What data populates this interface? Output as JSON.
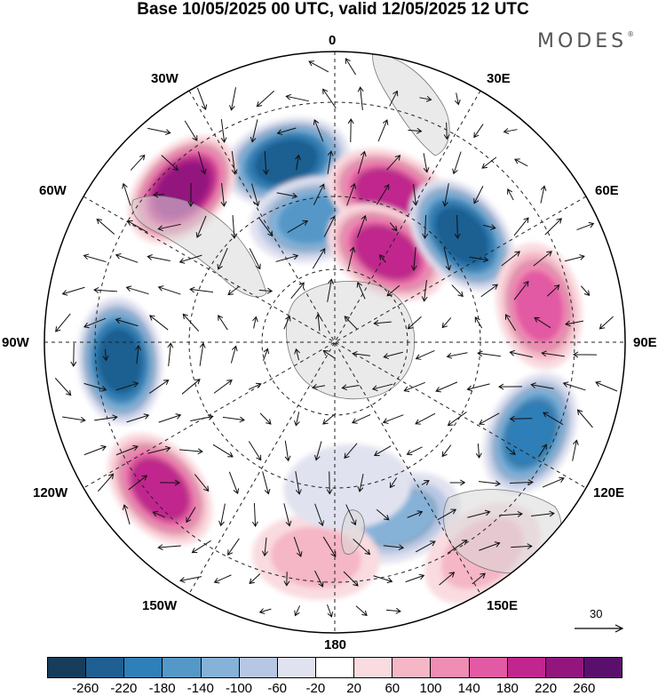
{
  "title": "Base 10/05/2025 00 UTC, valid 12/05/2025 12 UTC",
  "brand": "MODES",
  "brand_mark": "®",
  "longitude_labels": {
    "lon_0": "0",
    "lon_30e": "30E",
    "lon_60e": "60E",
    "lon_90e": "90E",
    "lon_120e": "120E",
    "lon_150e": "150E",
    "lon_180": "180",
    "lon_150w": "150W",
    "lon_120w": "120W",
    "lon_90w": "90W",
    "lon_60w": "60W",
    "lon_30w": "30W"
  },
  "reference_vector": "30",
  "colorbar": {
    "colors": [
      "#163d5c",
      "#1f5f91",
      "#2f7fb8",
      "#5498c8",
      "#86b2d8",
      "#b7c7e3",
      "#e1e2ef",
      "#ffffff",
      "#f9dbe0",
      "#f5b6c6",
      "#ef8db4",
      "#e25aa3",
      "#c1268e",
      "#93167f",
      "#5b0f6d"
    ],
    "tick_labels": [
      "-260",
      "-220",
      "-180",
      "-140",
      "-100",
      "-60",
      "-20",
      "20",
      "60",
      "100",
      "140",
      "180",
      "220",
      "260"
    ]
  },
  "anomaly_centers": [
    {
      "lon": -15,
      "lat": 45,
      "value": -250
    },
    {
      "lon": -45,
      "lat": 38,
      "value": 240
    },
    {
      "lon": -10,
      "lat": 60,
      "value": -140
    },
    {
      "lon": 20,
      "lat": 52,
      "value": 200
    },
    {
      "lon": 30,
      "lat": 65,
      "value": 180
    },
    {
      "lon": 50,
      "lat": 50,
      "value": -250
    },
    {
      "lon": 80,
      "lat": 40,
      "value": 170
    },
    {
      "lon": -95,
      "lat": 38,
      "value": -240
    },
    {
      "lon": -130,
      "lat": 35,
      "value": 200
    },
    {
      "lon": 115,
      "lat": 38,
      "value": -200
    },
    {
      "lon": 160,
      "lat": 45,
      "value": -130
    },
    {
      "lon": -175,
      "lat": 38,
      "value": 60
    },
    {
      "lon": 145,
      "lat": 28,
      "value": 60
    },
    {
      "lon": 175,
      "lat": 55,
      "value": -40
    }
  ]
}
